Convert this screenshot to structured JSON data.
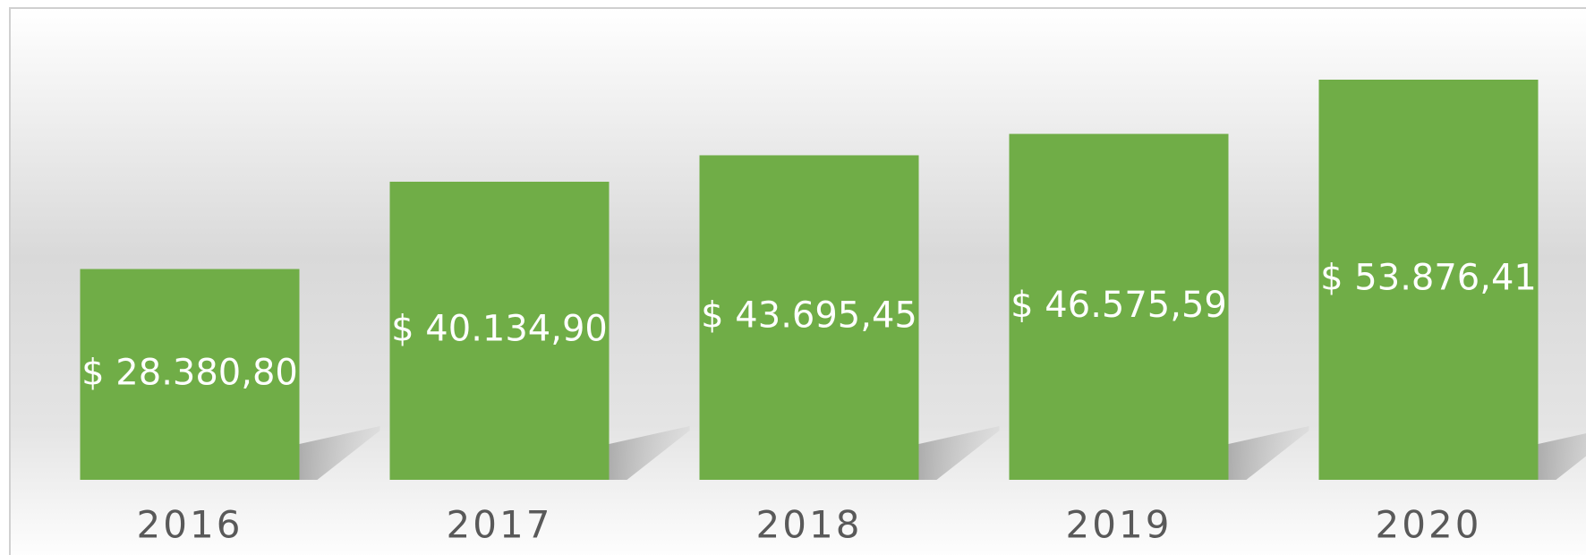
{
  "chart_data": {
    "type": "bar",
    "categories": [
      "2016",
      "2017",
      "2018",
      "2019",
      "2020"
    ],
    "values": [
      28380.8,
      40134.9,
      43695.45,
      46575.59,
      53876.41
    ],
    "value_labels": [
      "$ 28.380,80",
      "$ 40.134,90",
      "$ 43.695,45",
      "$ 46.575,59",
      "$ 53.876,41"
    ],
    "color": "#70ad47"
  }
}
